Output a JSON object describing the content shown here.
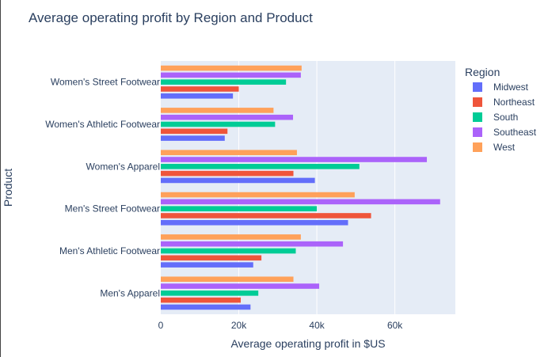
{
  "chart_data": {
    "type": "bar",
    "orientation": "horizontal",
    "title": "Average operating profit by Region and Product",
    "xlabel": "Average operating profit in $US",
    "ylabel": "Product",
    "xlim": [
      0,
      75500
    ],
    "x_ticks": [
      {
        "value": 0,
        "label": "0"
      },
      {
        "value": 20000,
        "label": "20k"
      },
      {
        "value": 40000,
        "label": "40k"
      },
      {
        "value": 60000,
        "label": "60k"
      }
    ],
    "grid": true,
    "legend_position": "right",
    "legend_title": "Region",
    "categories": [
      "Men's Apparel",
      "Men's Athletic Footwear",
      "Men's Street Footwear",
      "Women's Apparel",
      "Women's Athletic Footwear",
      "Women's Street Footwear"
    ],
    "series": [
      {
        "name": "Midwest",
        "color": "#636efa",
        "values": [
          23000,
          23700,
          48000,
          39500,
          16400,
          18500
        ]
      },
      {
        "name": "Northeast",
        "color": "#ef553b",
        "values": [
          20500,
          25800,
          53900,
          34000,
          17100,
          20000
        ]
      },
      {
        "name": "South",
        "color": "#00cc96",
        "values": [
          25000,
          34600,
          40000,
          50900,
          29300,
          32100
        ]
      },
      {
        "name": "Southeast",
        "color": "#ab63fa",
        "values": [
          40600,
          46700,
          71600,
          68200,
          33900,
          35900
        ]
      },
      {
        "name": "West",
        "color": "#ffa15a",
        "values": [
          34000,
          35900,
          49700,
          34900,
          28900,
          36100
        ]
      }
    ]
  },
  "colors": {
    "plot_background": "#e5ecf6",
    "gridline": "#ffffff",
    "text": "#2a3f5f"
  }
}
